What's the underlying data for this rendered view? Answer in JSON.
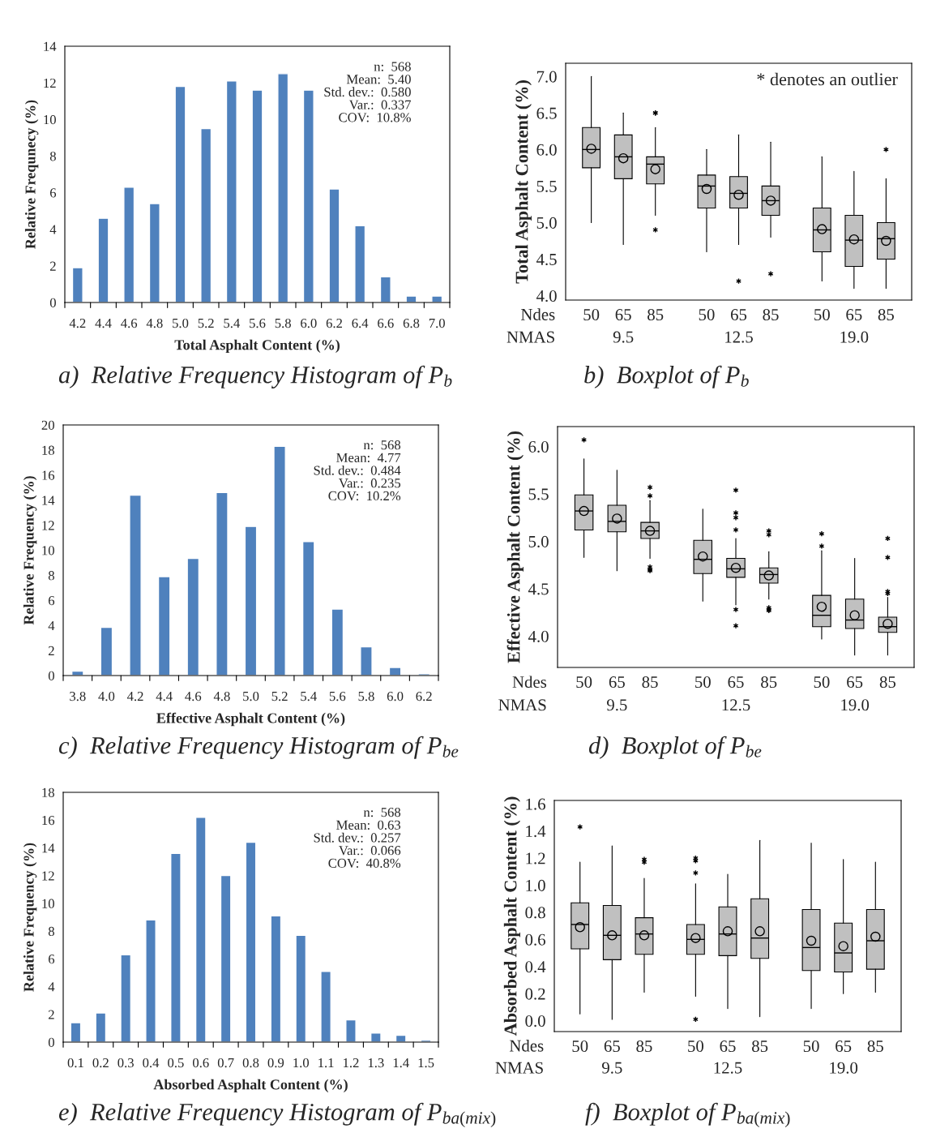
{
  "chart_data": [
    {
      "type": "bar",
      "title": "a)  Relative Frequency Histogram of P$_{b}$",
      "xlabel": "Total Asphalt Content (%)",
      "ylabel": "Relative Frequnecy (%)",
      "categories": [
        "4.2",
        "4.4",
        "4.6",
        "4.8",
        "5.0",
        "5.2",
        "5.4",
        "5.6",
        "5.8",
        "6.0",
        "6.2",
        "6.4",
        "6.6",
        "6.8",
        "7.0"
      ],
      "values": [
        1.9,
        4.6,
        6.3,
        5.4,
        11.8,
        9.5,
        12.1,
        11.6,
        12.5,
        11.6,
        6.2,
        4.2,
        1.4,
        0.35,
        0.35
      ],
      "color": "#4f81bd",
      "ylim": [
        0,
        14
      ],
      "yticks": [
        0,
        2,
        4,
        6,
        8,
        10,
        12,
        14
      ],
      "grid": false,
      "annotations": [
        "n:  568",
        "Mean:  5.40",
        "Std. dev.:  0.580",
        "Var.:  0.337",
        "COV:  10.8%"
      ]
    },
    {
      "type": "box",
      "title": "b)  Boxplot of P$_{b}$",
      "xlabel": "Ndes",
      "ylabel": "Total Asphalt Content (%)",
      "categories": [
        "50",
        "65",
        "85",
        "50",
        "65",
        "85",
        "50",
        "65",
        "85"
      ],
      "color": "#c0c0c0",
      "boxes": [
        {
          "low": 5.0,
          "q1": 5.75,
          "median": 6.0,
          "q3": 6.3,
          "high": 7.0,
          "mean": 6.01
        },
        {
          "low": 4.7,
          "q1": 5.6,
          "median": 5.9,
          "q3": 6.2,
          "high": 6.5,
          "mean": 5.88
        },
        {
          "low": 5.1,
          "q1": 5.53,
          "median": 5.8,
          "q3": 5.9,
          "high": 6.3,
          "mean": 5.73,
          "outliers": [
            6.5,
            6.5,
            4.9
          ]
        },
        {
          "low": 4.6,
          "q1": 5.2,
          "median": 5.5,
          "q3": 5.65,
          "high": 6.0,
          "mean": 5.46
        },
        {
          "low": 4.7,
          "q1": 5.2,
          "median": 5.4,
          "q3": 5.63,
          "high": 6.2,
          "mean": 5.38,
          "outliers": [
            4.2
          ]
        },
        {
          "low": 4.8,
          "q1": 5.1,
          "median": 5.3,
          "q3": 5.5,
          "high": 6.1,
          "mean": 5.3,
          "outliers": [
            4.3
          ]
        },
        {
          "low": 4.2,
          "q1": 4.6,
          "median": 4.9,
          "q3": 5.2,
          "high": 5.9,
          "mean": 4.91
        },
        {
          "low": 4.1,
          "q1": 4.4,
          "median": 4.76,
          "q3": 5.1,
          "high": 5.7,
          "mean": 4.77
        },
        {
          "low": 4.1,
          "q1": 4.5,
          "median": 4.78,
          "q3": 5.0,
          "high": 5.6,
          "mean": 4.75,
          "outliers": [
            6.0
          ]
        }
      ],
      "ylim": [
        3.94,
        7.18
      ],
      "yticks": [
        {
          "value": 4.0,
          "label": "4.0"
        },
        4.5,
        {
          "value": 5.0,
          "label": "5.0"
        },
        5.5,
        {
          "value": 6.0,
          "label": "6.0"
        },
        6.5,
        {
          "value": 7.0,
          "label": "7.0"
        }
      ],
      "grid": false,
      "annotations": [
        "* denotes an outlier",
        "NMAS",
        "9.5",
        "12.5",
        "19.0"
      ]
    },
    {
      "type": "bar",
      "title": "c)  Relative Frequency Histogram of P$_{be}$",
      "xlabel": "Effective Asphalt Content (%)",
      "ylabel": "Relative Frequency (%)",
      "categories": [
        "3.8",
        "4.0",
        "4.2",
        "4.4",
        "4.6",
        "4.8",
        "5.0",
        "5.2",
        "5.4",
        "5.6",
        "5.8",
        "6.0",
        "6.2"
      ],
      "values": [
        0.35,
        3.85,
        14.4,
        7.9,
        9.35,
        14.6,
        11.9,
        18.3,
        10.7,
        5.3,
        2.3,
        0.65,
        0.15
      ],
      "color": "#4f81bd",
      "ylim": [
        0,
        20
      ],
      "yticks": [
        0,
        2,
        4,
        6,
        8,
        10,
        12,
        14,
        16,
        18,
        20
      ],
      "grid": false,
      "annotations": [
        "n:  568",
        "Mean:  4.77",
        "Std. dev.:  0.484",
        "Var.:  0.235",
        "COV:  10.2%"
      ]
    },
    {
      "type": "box",
      "title": "d)  Boxplot of P$_{be}$",
      "xlabel": "Ndes",
      "ylabel": "Effective Asphalt Content (%)",
      "categories": [
        "50",
        "65",
        "85",
        "50",
        "65",
        "85",
        "50",
        "65",
        "85"
      ],
      "color": "#c0c0c0",
      "boxes": [
        {
          "low": 4.83,
          "q1": 5.12,
          "median": 5.32,
          "q3": 5.49,
          "high": 5.87,
          "mean": 5.32,
          "outliers": [
            6.07
          ]
        },
        {
          "low": 4.69,
          "q1": 5.1,
          "median": 5.21,
          "q3": 5.38,
          "high": 5.75,
          "mean": 5.24
        },
        {
          "low": 4.82,
          "q1": 5.03,
          "median": 5.11,
          "q3": 5.2,
          "high": 5.43,
          "mean": 5.11,
          "outliers": [
            5.57,
            5.48,
            4.73,
            4.7,
            4.69
          ]
        },
        {
          "low": 4.37,
          "q1": 4.66,
          "median": 4.81,
          "q3": 5.01,
          "high": 5.34,
          "mean": 4.84
        },
        {
          "low": 4.33,
          "q1": 4.62,
          "median": 4.71,
          "q3": 4.82,
          "high": 5.03,
          "mean": 4.72,
          "outliers": [
            5.54,
            5.3,
            5.25,
            5.12,
            4.28,
            4.11
          ]
        },
        {
          "low": 4.39,
          "q1": 4.56,
          "median": 4.65,
          "q3": 4.72,
          "high": 4.89,
          "mean": 4.64,
          "outliers": [
            5.11,
            5.07,
            4.3,
            4.28,
            4.27
          ]
        },
        {
          "low": 3.97,
          "q1": 4.1,
          "median": 4.22,
          "q3": 4.43,
          "high": 4.9,
          "mean": 4.31,
          "outliers": [
            5.08,
            4.95
          ]
        },
        {
          "low": 3.8,
          "q1": 4.08,
          "median": 4.17,
          "q3": 4.39,
          "high": 4.82,
          "mean": 4.22
        },
        {
          "low": 3.8,
          "q1": 4.04,
          "median": 4.1,
          "q3": 4.2,
          "high": 4.41,
          "mean": 4.13,
          "outliers": [
            5.03,
            4.83,
            4.47,
            4.45
          ]
        }
      ],
      "ylim": [
        3.67,
        6.21
      ],
      "yticks": [
        {
          "value": 4.0,
          "label": "4.0"
        },
        4.5,
        {
          "value": 5.0,
          "label": "5.0"
        },
        5.5,
        {
          "value": 6.0,
          "label": "6.0"
        }
      ],
      "grid": false,
      "annotations": [
        "NMAS",
        "9.5",
        "12.5",
        "19.0"
      ]
    },
    {
      "type": "bar",
      "title": "e)  Relative Frequency Histogram of P$_{ba(mix)}$",
      "xlabel": "Absorbed Asphalt Content (%)",
      "ylabel": "Relative Frequency (%)",
      "categories": [
        "0.1",
        "0.2",
        "0.3",
        "0.4",
        "0.5",
        "0.6",
        "0.7",
        "0.8",
        "0.9",
        "1.0",
        "1.1",
        "1.2",
        "1.3",
        "1.4",
        "1.5"
      ],
      "values": [
        1.4,
        2.1,
        6.3,
        8.8,
        13.6,
        16.2,
        12.0,
        14.4,
        9.1,
        7.7,
        5.1,
        1.6,
        0.65,
        0.5,
        0.15
      ],
      "color": "#4f81bd",
      "ylim": [
        0,
        18
      ],
      "yticks": [
        0,
        2,
        4,
        6,
        8,
        10,
        12,
        14,
        16,
        18
      ],
      "grid": false,
      "annotations": [
        "n:  568",
        "Mean:  0.63",
        "Std. dev.:  0.257",
        "Var.:  0.066",
        "COV:  40.8%"
      ]
    },
    {
      "type": "box",
      "title": "f)  Boxplot of P$_{ba(mix)}$",
      "xlabel": "Ndes",
      "ylabel": "Absorbed Asphalt Content (%)",
      "categories": [
        "50",
        "65",
        "85",
        "50",
        "65",
        "85",
        "50",
        "65",
        "85"
      ],
      "color": "#c0c0c0",
      "boxes": [
        {
          "low": 0.05,
          "q1": 0.53,
          "median": 0.71,
          "q3": 0.87,
          "high": 1.17,
          "mean": 0.69,
          "outliers": [
            1.43
          ]
        },
        {
          "low": 0.01,
          "q1": 0.45,
          "median": 0.63,
          "q3": 0.85,
          "high": 1.29,
          "mean": 0.63
        },
        {
          "low": 0.21,
          "q1": 0.49,
          "median": 0.64,
          "q3": 0.76,
          "high": 1.05,
          "mean": 0.63,
          "outliers": [
            1.19,
            1.17
          ]
        },
        {
          "low": 0.18,
          "q1": 0.49,
          "median": 0.6,
          "q3": 0.71,
          "high": 1.01,
          "mean": 0.61,
          "outliers": [
            1.2,
            1.18,
            1.09,
            0.01
          ]
        },
        {
          "low": 0.09,
          "q1": 0.48,
          "median": 0.64,
          "q3": 0.84,
          "high": 1.08,
          "mean": 0.66
        },
        {
          "low": 0.03,
          "q1": 0.46,
          "median": 0.61,
          "q3": 0.9,
          "high": 1.33,
          "mean": 0.66
        },
        {
          "low": 0.09,
          "q1": 0.37,
          "median": 0.54,
          "q3": 0.82,
          "high": 1.31,
          "mean": 0.59
        },
        {
          "low": 0.2,
          "q1": 0.36,
          "median": 0.5,
          "q3": 0.72,
          "high": 1.19,
          "mean": 0.55
        },
        {
          "low": 0.21,
          "q1": 0.38,
          "median": 0.59,
          "q3": 0.82,
          "high": 1.17,
          "mean": 0.62
        }
      ],
      "ylim": [
        -0.08,
        1.625
      ],
      "yticks": [
        {
          "value": 0.0,
          "label": "0.0"
        },
        0.2,
        0.4,
        0.6,
        0.8,
        {
          "value": 1.0,
          "label": "1.0"
        },
        1.2,
        1.4,
        1.6
      ],
      "grid": false,
      "annotations": [
        "NMAS",
        "9.5",
        "12.5",
        "19.0"
      ]
    }
  ]
}
